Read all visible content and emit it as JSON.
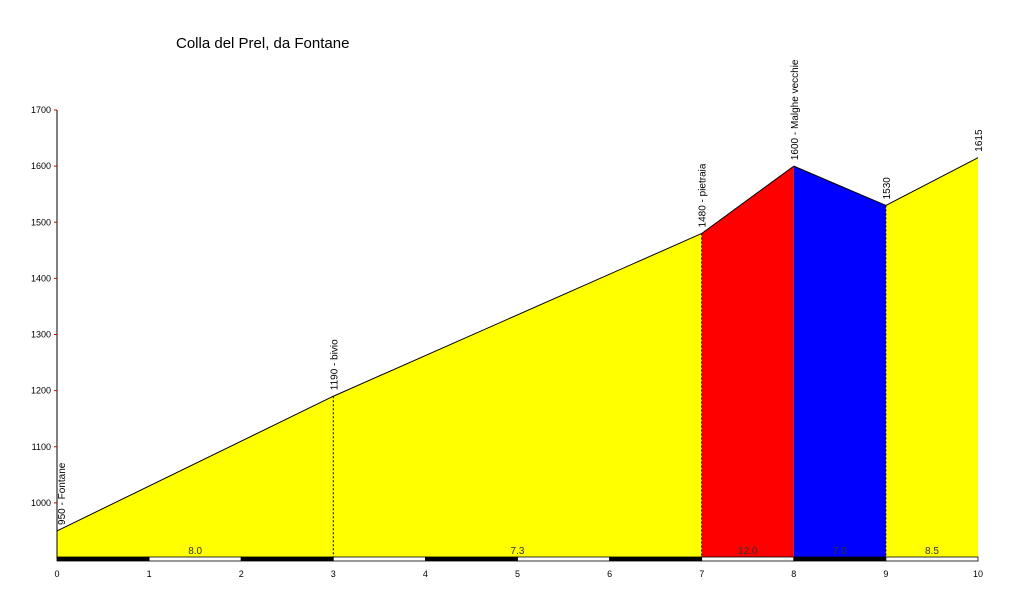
{
  "chart_data": {
    "type": "area",
    "title": "Colla del Prel, da Fontane",
    "xlabel": "",
    "ylabel": "",
    "xlim": [
      0,
      10
    ],
    "ylim": [
      900,
      1700
    ],
    "grid": false,
    "x_ticks": [
      "0",
      "1",
      "2",
      "3",
      "4",
      "5",
      "6",
      "7",
      "8",
      "9",
      "10"
    ],
    "y_ticks": [
      "1000",
      "1100",
      "1200",
      "1300",
      "1400",
      "1500",
      "1600",
      "1700"
    ],
    "points": [
      {
        "x": 0,
        "y": 950,
        "label": "950 - Fontane"
      },
      {
        "x": 3,
        "y": 1190,
        "label": "1190 - bivio"
      },
      {
        "x": 7,
        "y": 1480,
        "label": "1480 - pietraia"
      },
      {
        "x": 8,
        "y": 1600,
        "label": "1600 - Malghe vecchie"
      },
      {
        "x": 9,
        "y": 1530,
        "label": "1530"
      },
      {
        "x": 10,
        "y": 1615,
        "label": "1615"
      }
    ],
    "segments": [
      {
        "from": 0,
        "to": 3,
        "gradient": "8.0",
        "color": "#ffff00"
      },
      {
        "from": 3,
        "to": 7,
        "gradient": "7.3",
        "color": "#ffff00"
      },
      {
        "from": 7,
        "to": 8,
        "gradient": "12.0",
        "color": "#ff0000"
      },
      {
        "from": 8,
        "to": 9,
        "gradient": "7.0",
        "color": "#0000ff"
      },
      {
        "from": 9,
        "to": 10,
        "gradient": "8.5",
        "color": "#ffff00"
      }
    ]
  }
}
